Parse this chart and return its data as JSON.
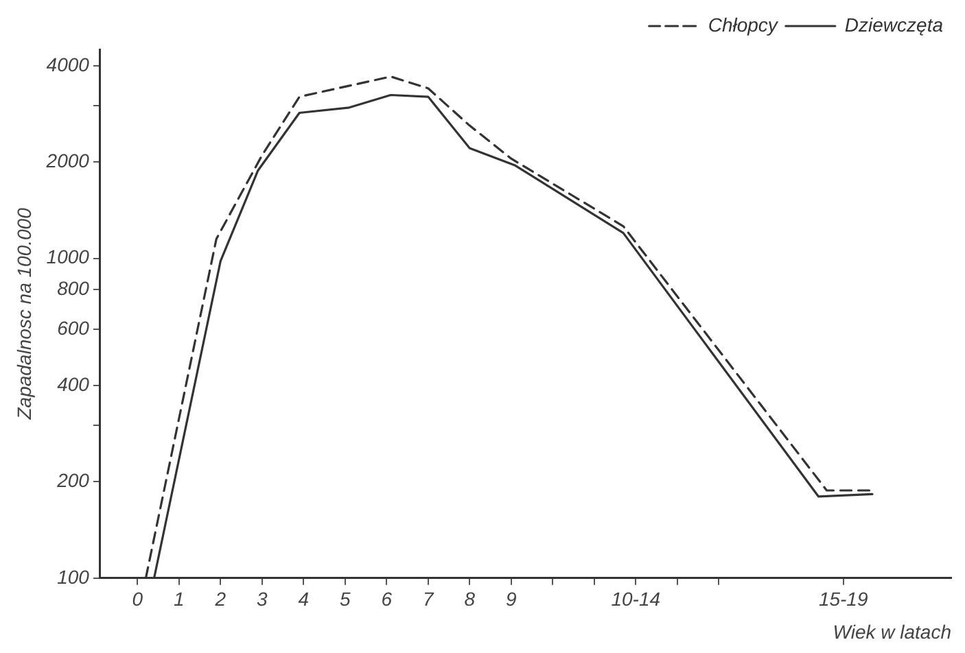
{
  "chart_data": {
    "type": "line",
    "xlabel": "Wiek w latach",
    "ylabel": "Zapadalnosc na 100.000",
    "log": "y",
    "legend": "top right",
    "marker": "none",
    "grid": false,
    "xlim": [
      -0.9,
      19.6
    ],
    "ylim": [
      100,
      4500
    ],
    "xticks": [
      0,
      1,
      2,
      3,
      4,
      5,
      6,
      7,
      8,
      9,
      {
        "value": 10,
        "label": null
      },
      {
        "value": 11,
        "label": null
      },
      {
        "value": 12,
        "label": "10-14"
      },
      {
        "value": 13,
        "label": null
      },
      {
        "value": 14,
        "label": null
      },
      {
        "value": 17,
        "label": "15-19"
      }
    ],
    "yticks": [
      100,
      200,
      {
        "value": 300,
        "label": null
      },
      400,
      600,
      800,
      1000,
      2000,
      {
        "value": 3000,
        "label": null
      },
      4000
    ],
    "series": [
      {
        "name": "Chłopcy",
        "color": "#333333",
        "line_style": "dashed",
        "x": [
          0.2,
          1.9,
          3,
          3.9,
          6.1,
          7,
          8,
          9,
          11.7,
          16.6,
          17.7
        ],
        "values": [
          100,
          1150,
          2100,
          3200,
          3700,
          3400,
          2600,
          2050,
          1260,
          188,
          188
        ]
      },
      {
        "name": "Dziewczęta",
        "color": "#333333",
        "line_style": "solid",
        "x": [
          0.4,
          2,
          2.9,
          3.9,
          5.1,
          6.1,
          7,
          8,
          9.1,
          11.7,
          16.4,
          17.7
        ],
        "values": [
          100,
          980,
          1880,
          2850,
          2960,
          3240,
          3200,
          2210,
          1950,
          1200,
          180,
          183
        ]
      }
    ]
  }
}
